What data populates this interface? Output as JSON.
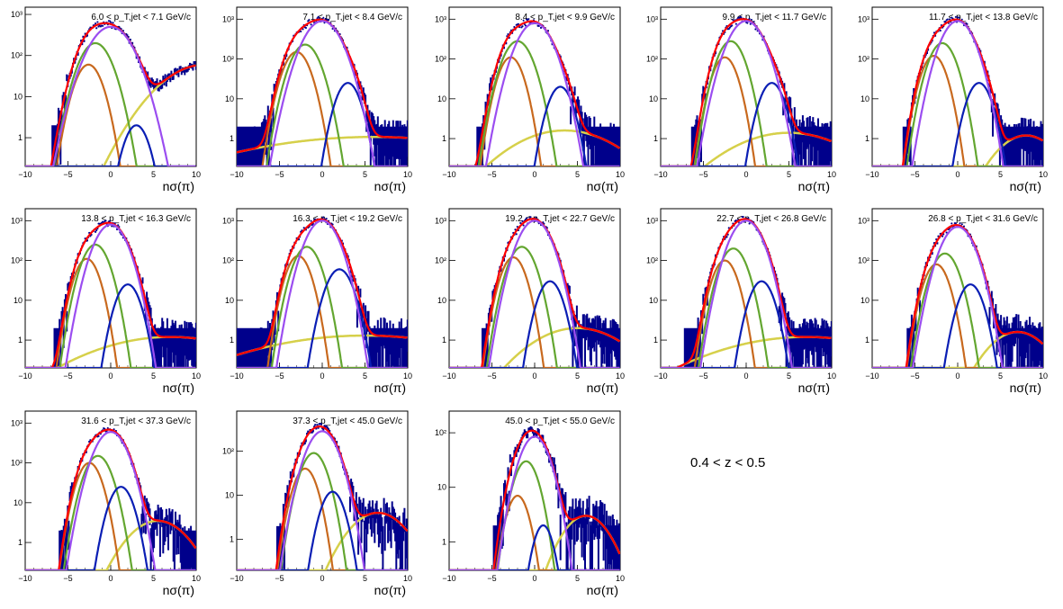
{
  "colors": {
    "data": "#00008b",
    "total_fit": "#ff0000",
    "pion": "#9b4df0",
    "kaon": "#63a630",
    "proton": "#c8691e",
    "electron": "#0a1eb4",
    "background": "#d6d04a"
  },
  "z_label": "0.4 < z < 0.5",
  "chart_data": [
    {
      "type": "line",
      "scale": "log",
      "title": "6.0 < p_T,jet < 7.1 GeV/c",
      "xlabel": "nσ(π)",
      "xlim": [
        -10,
        10
      ],
      "ylim": [
        0.2,
        1500
      ],
      "x_ticks": [
        "−10",
        "−5",
        "0",
        "5",
        "10"
      ],
      "y_ticks": [
        "1",
        "10",
        "10²",
        "10³"
      ],
      "components": {
        "pion": {
          "mu": 0,
          "A": 500,
          "s": 1.7
        },
        "kaon": {
          "mu": -1.8,
          "A": 200,
          "s": 1.3
        },
        "proton": {
          "mu": -2.6,
          "A": 60,
          "s": 1.1
        },
        "electron": {
          "mu": 3,
          "A": 2,
          "s": 1
        },
        "background": {
          "mu": 11,
          "A": 60,
          "s": 3.5
        }
      }
    },
    {
      "type": "line",
      "scale": "log",
      "title": "7.1 < p_T,jet < 8.4 GeV/c",
      "xlabel": "nσ(π)",
      "xlim": [
        -10,
        10
      ],
      "ylim": [
        0.2,
        2000
      ],
      "x_ticks": [
        "−10",
        "−5",
        "0",
        "5",
        "10"
      ],
      "y_ticks": [
        "1",
        "10",
        "10²",
        "10³"
      ],
      "components": {
        "pion": {
          "mu": 0,
          "A": 900,
          "s": 1.5
        },
        "kaon": {
          "mu": -2,
          "A": 230,
          "s": 1.2
        },
        "proton": {
          "mu": -3,
          "A": 150,
          "s": 1.1
        },
        "electron": {
          "mu": 3,
          "A": 25,
          "s": 1
        },
        "background": {
          "mu": 6,
          "A": 1.1,
          "s": 12
        }
      }
    },
    {
      "type": "line",
      "scale": "log",
      "title": "8.4 < p_T,jet < 9.9 GeV/c",
      "xlabel": "nσ(π)",
      "xlim": [
        -10,
        10
      ],
      "ylim": [
        0.2,
        2000
      ],
      "x_ticks": [
        "−10",
        "−5",
        "0",
        "5",
        "10"
      ],
      "y_ticks": [
        "1",
        "10",
        "10²",
        "10³"
      ],
      "components": {
        "pion": {
          "mu": 0,
          "A": 800,
          "s": 1.4
        },
        "kaon": {
          "mu": -2,
          "A": 280,
          "s": 1.2
        },
        "proton": {
          "mu": -2.8,
          "A": 110,
          "s": 1
        },
        "electron": {
          "mu": 3,
          "A": 20,
          "s": 1
        },
        "background": {
          "mu": 3.5,
          "A": 1.6,
          "s": 4.5
        }
      }
    },
    {
      "type": "line",
      "scale": "log",
      "title": "9.9 < p_T,jet < 11.7 GeV/c",
      "xlabel": "nσ(π)",
      "xlim": [
        -10,
        10
      ],
      "ylim": [
        0.2,
        2000
      ],
      "x_ticks": [
        "−10",
        "−5",
        "0",
        "5",
        "10"
      ],
      "y_ticks": [
        "1",
        "10",
        "10²",
        "10³"
      ],
      "components": {
        "pion": {
          "mu": 0,
          "A": 900,
          "s": 1.4
        },
        "kaon": {
          "mu": -1.8,
          "A": 280,
          "s": 1.1
        },
        "proton": {
          "mu": -2.5,
          "A": 110,
          "s": 1
        },
        "electron": {
          "mu": 3,
          "A": 25,
          "s": 1
        },
        "background": {
          "mu": 5,
          "A": 1.4,
          "s": 5
        }
      }
    },
    {
      "type": "line",
      "scale": "log",
      "title": "11.7 < p_T,jet < 13.8 GeV/c",
      "xlabel": "nσ(π)",
      "xlim": [
        -10,
        10
      ],
      "ylim": [
        0.2,
        2000
      ],
      "x_ticks": [
        "−10",
        "−5",
        "0",
        "5",
        "10"
      ],
      "y_ticks": [
        "1",
        "10",
        "10²",
        "10³"
      ],
      "components": {
        "pion": {
          "mu": 0,
          "A": 900,
          "s": 1.3
        },
        "kaon": {
          "mu": -1.8,
          "A": 250,
          "s": 1.1
        },
        "proton": {
          "mu": -2.8,
          "A": 120,
          "s": 1
        },
        "electron": {
          "mu": 2.5,
          "A": 25,
          "s": 1
        },
        "background": {
          "mu": 8,
          "A": 1.2,
          "s": 2.5
        }
      }
    },
    {
      "type": "line",
      "scale": "log",
      "title": "13.8 < p_T,jet < 16.3 GeV/c",
      "xlabel": "nσ(π)",
      "xlim": [
        -10,
        10
      ],
      "ylim": [
        0.2,
        2000
      ],
      "x_ticks": [
        "−10",
        "−5",
        "0",
        "5",
        "10"
      ],
      "y_ticks": [
        "1",
        "10",
        "10²",
        "10³"
      ],
      "components": {
        "pion": {
          "mu": 0,
          "A": 800,
          "s": 1.3
        },
        "kaon": {
          "mu": -1.8,
          "A": 250,
          "s": 1.1
        },
        "proton": {
          "mu": -2.8,
          "A": 110,
          "s": 1
        },
        "electron": {
          "mu": 2,
          "A": 25,
          "s": 1
        },
        "background": {
          "mu": 7,
          "A": 1.2,
          "s": 7
        }
      }
    },
    {
      "type": "line",
      "scale": "log",
      "title": "16.3 < p_T,jet < 19.2 GeV/c",
      "xlabel": "nσ(π)",
      "xlim": [
        -10,
        10
      ],
      "ylim": [
        0.2,
        2000
      ],
      "x_ticks": [
        "−10",
        "−5",
        "0",
        "5",
        "10"
      ],
      "y_ticks": [
        "1",
        "10",
        "10²",
        "10³"
      ],
      "components": {
        "pion": {
          "mu": 0,
          "A": 1000,
          "s": 1.3
        },
        "kaon": {
          "mu": -1.8,
          "A": 220,
          "s": 1.1
        },
        "proton": {
          "mu": -2.8,
          "A": 130,
          "s": 1
        },
        "electron": {
          "mu": 2,
          "A": 60,
          "s": 1.1
        },
        "background": {
          "mu": 5,
          "A": 1.3,
          "s": 10
        }
      }
    },
    {
      "type": "line",
      "scale": "log",
      "title": "19.2 < p_T,jet < 22.7 GeV/c",
      "xlabel": "nσ(π)",
      "xlim": [
        -10,
        10
      ],
      "ylim": [
        0.2,
        2000
      ],
      "x_ticks": [
        "−10",
        "−5",
        "0",
        "5",
        "10"
      ],
      "y_ticks": [
        "1",
        "10",
        "10²",
        "10³"
      ],
      "components": {
        "pion": {
          "mu": 0,
          "A": 1000,
          "s": 1.3
        },
        "kaon": {
          "mu": -1.5,
          "A": 220,
          "s": 1.1
        },
        "proton": {
          "mu": -2.5,
          "A": 120,
          "s": 1
        },
        "electron": {
          "mu": 1.8,
          "A": 30,
          "s": 1
        },
        "background": {
          "mu": 5,
          "A": 2,
          "s": 4
        }
      }
    },
    {
      "type": "line",
      "scale": "log",
      "title": "22.7 < p_T,jet < 26.8 GeV/c",
      "xlabel": "nσ(π)",
      "xlim": [
        -10,
        10
      ],
      "ylim": [
        0.2,
        2000
      ],
      "x_ticks": [
        "−10",
        "−5",
        "0",
        "5",
        "10"
      ],
      "y_ticks": [
        "1",
        "10",
        "10²",
        "10³"
      ],
      "components": {
        "pion": {
          "mu": 0,
          "A": 1000,
          "s": 1.3
        },
        "kaon": {
          "mu": -1.5,
          "A": 200,
          "s": 1.1
        },
        "proton": {
          "mu": -2.5,
          "A": 100,
          "s": 1
        },
        "electron": {
          "mu": 1.8,
          "A": 30,
          "s": 1
        },
        "background": {
          "mu": 7,
          "A": 1.2,
          "s": 8
        }
      }
    },
    {
      "type": "line",
      "scale": "log",
      "title": "26.8 < p_T,jet < 31.6 GeV/c",
      "xlabel": "nσ(π)",
      "xlim": [
        -10,
        10
      ],
      "ylim": [
        0.2,
        2000
      ],
      "x_ticks": [
        "−10",
        "−5",
        "0",
        "5",
        "10"
      ],
      "y_ticks": [
        "1",
        "10",
        "10²",
        "10³"
      ],
      "components": {
        "pion": {
          "mu": 0,
          "A": 700,
          "s": 1.3
        },
        "kaon": {
          "mu": -1.5,
          "A": 150,
          "s": 1.1
        },
        "proton": {
          "mu": -2.5,
          "A": 80,
          "s": 1
        },
        "electron": {
          "mu": 1.5,
          "A": 25,
          "s": 1
        },
        "background": {
          "mu": 7,
          "A": 1.6,
          "s": 2.5
        }
      }
    },
    {
      "type": "line",
      "scale": "log",
      "title": "31.6 < p_T,jet < 37.3 GeV/c",
      "xlabel": "nσ(π)",
      "xlim": [
        -10,
        10
      ],
      "ylim": [
        0.2,
        2000
      ],
      "x_ticks": [
        "−10",
        "−5",
        "0",
        "5",
        "10"
      ],
      "y_ticks": [
        "1",
        "10",
        "10²",
        "10³"
      ],
      "components": {
        "pion": {
          "mu": 0,
          "A": 600,
          "s": 1.3
        },
        "kaon": {
          "mu": -1.5,
          "A": 150,
          "s": 1.1
        },
        "proton": {
          "mu": -2.5,
          "A": 100,
          "s": 1
        },
        "electron": {
          "mu": 1.2,
          "A": 25,
          "s": 1
        },
        "background": {
          "mu": 5.5,
          "A": 3.5,
          "s": 2.5
        }
      }
    },
    {
      "type": "line",
      "scale": "log",
      "title": "37.3 < p_T,jet < 45.0 GeV/c",
      "xlabel": "nσ(π)",
      "xlim": [
        -10,
        10
      ],
      "ylim": [
        0.2,
        800
      ],
      "x_ticks": [
        "−10",
        "−5",
        "0",
        "5",
        "10"
      ],
      "y_ticks": [
        "1",
        "10",
        "10²"
      ],
      "components": {
        "pion": {
          "mu": 0,
          "A": 280,
          "s": 1.3
        },
        "kaon": {
          "mu": -1,
          "A": 90,
          "s": 1.1
        },
        "proton": {
          "mu": -2,
          "A": 40,
          "s": 1
        },
        "electron": {
          "mu": 1.2,
          "A": 12,
          "s": 1
        },
        "background": {
          "mu": 6.5,
          "A": 4,
          "s": 2.5
        }
      }
    },
    {
      "type": "line",
      "scale": "log",
      "title": "45.0 < p_T,jet < 55.0 GeV/c",
      "xlabel": "nσ(π)",
      "xlim": [
        -10,
        10
      ],
      "ylim": [
        0.3,
        250
      ],
      "x_ticks": [
        "−10",
        "−5",
        "0",
        "5",
        "10"
      ],
      "y_ticks": [
        "1",
        "10",
        "10²"
      ],
      "components": {
        "pion": {
          "mu": 0,
          "A": 85,
          "s": 1.3
        },
        "kaon": {
          "mu": -1,
          "A": 30,
          "s": 1.1
        },
        "proton": {
          "mu": -2,
          "A": 7,
          "s": 1
        },
        "electron": {
          "mu": 1,
          "A": 2,
          "s": 0.9
        },
        "background": {
          "mu": 6,
          "A": 3,
          "s": 2.2
        }
      }
    }
  ]
}
